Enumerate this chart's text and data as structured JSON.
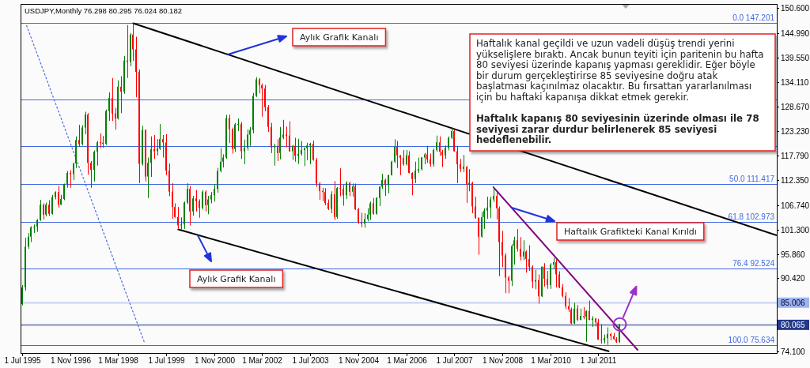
{
  "chart_data": {
    "type": "candlestick",
    "title": "USDJPY,Monthly 76.298 80.295 76.024 80.182",
    "x": [
      "1995-07",
      "1995-08",
      "1995-09",
      "1995-10",
      "1995-11",
      "1995-12",
      "1996-01",
      "1996-02",
      "1996-03",
      "1996-04",
      "1996-05",
      "1996-06",
      "1996-07",
      "1996-08",
      "1996-09",
      "1996-10",
      "1996-11",
      "1996-12",
      "1997-01",
      "1997-02",
      "1997-03",
      "1997-04",
      "1997-05",
      "1997-06",
      "1997-07",
      "1997-08",
      "1997-09",
      "1997-10",
      "1997-11",
      "1997-12",
      "1998-01",
      "1998-02",
      "1998-03",
      "1998-04",
      "1998-05",
      "1998-06",
      "1998-07",
      "1998-08",
      "1998-09",
      "1998-10",
      "1998-11",
      "1998-12",
      "1999-01",
      "1999-02",
      "1999-03",
      "1999-04",
      "1999-05",
      "1999-06",
      "1999-07",
      "1999-08",
      "1999-09",
      "1999-10",
      "1999-11",
      "1999-12",
      "2000-01",
      "2000-02",
      "2000-03",
      "2000-04",
      "2000-05",
      "2000-06",
      "2000-07",
      "2000-08",
      "2000-09",
      "2000-10",
      "2000-11",
      "2000-12",
      "2001-01",
      "2001-02",
      "2001-03",
      "2001-04",
      "2001-05",
      "2001-06",
      "2001-07",
      "2001-08",
      "2001-09",
      "2001-10",
      "2001-11",
      "2001-12",
      "2002-01",
      "2002-02",
      "2002-03",
      "2002-04",
      "2002-05",
      "2002-06",
      "2002-07",
      "2002-08",
      "2002-09",
      "2002-10",
      "2002-11",
      "2002-12",
      "2003-01",
      "2003-02",
      "2003-03",
      "2003-04",
      "2003-05",
      "2003-06",
      "2003-07",
      "2003-08",
      "2003-09",
      "2003-10",
      "2003-11",
      "2003-12",
      "2004-01",
      "2004-02",
      "2004-03",
      "2004-04",
      "2004-05",
      "2004-06",
      "2004-07",
      "2004-08",
      "2004-09",
      "2004-10",
      "2004-11",
      "2004-12",
      "2005-01",
      "2005-02",
      "2005-03",
      "2005-04",
      "2005-05",
      "2005-06",
      "2005-07",
      "2005-08",
      "2005-09",
      "2005-10",
      "2005-11",
      "2005-12",
      "2006-01",
      "2006-02",
      "2006-03",
      "2006-04",
      "2006-05",
      "2006-06",
      "2006-07",
      "2006-08",
      "2006-09",
      "2006-10",
      "2006-11",
      "2006-12",
      "2007-01",
      "2007-02",
      "2007-03",
      "2007-04",
      "2007-05",
      "2007-06",
      "2007-07",
      "2007-08",
      "2007-09",
      "2007-10",
      "2007-11",
      "2007-12",
      "2008-01",
      "2008-02",
      "2008-03",
      "2008-04",
      "2008-05",
      "2008-06",
      "2008-07",
      "2008-08",
      "2008-09",
      "2008-10",
      "2008-11",
      "2008-12",
      "2009-01",
      "2009-02",
      "2009-03",
      "2009-04",
      "2009-05",
      "2009-06",
      "2009-07",
      "2009-08",
      "2009-09",
      "2009-10",
      "2009-11",
      "2009-12",
      "2010-01",
      "2010-02",
      "2010-03",
      "2010-04",
      "2010-05",
      "2010-06",
      "2010-07",
      "2010-08",
      "2010-09",
      "2010-10",
      "2010-11",
      "2010-12",
      "2011-01",
      "2011-02",
      "2011-03",
      "2011-04",
      "2011-05",
      "2011-06",
      "2011-07",
      "2011-08",
      "2011-09",
      "2011-10",
      "2011-11",
      "2011-12",
      "2012-01",
      "2012-02"
    ],
    "ohlc": [
      [
        84.7,
        88.9,
        84.4,
        88.4
      ],
      [
        88.4,
        99.4,
        87.7,
        97.5
      ],
      [
        97.5,
        100.5,
        97.0,
        99.7
      ],
      [
        99.7,
        102.0,
        98.5,
        101.8
      ],
      [
        101.8,
        102.4,
        100.5,
        101.9
      ],
      [
        101.9,
        103.6,
        100.8,
        103.4
      ],
      [
        103.4,
        107.9,
        103.2,
        106.8
      ],
      [
        106.8,
        107.1,
        103.5,
        104.6
      ],
      [
        104.6,
        107.3,
        104.2,
        106.8
      ],
      [
        106.8,
        107.8,
        104.3,
        104.8
      ],
      [
        104.8,
        109.0,
        104.6,
        108.5
      ],
      [
        108.5,
        109.8,
        108.0,
        109.6
      ],
      [
        109.6,
        111.0,
        106.2,
        106.8
      ],
      [
        106.8,
        109.0,
        106.7,
        108.1
      ],
      [
        108.1,
        111.5,
        107.8,
        111.4
      ],
      [
        111.4,
        114.3,
        110.6,
        113.9
      ],
      [
        113.9,
        114.5,
        110.6,
        113.6
      ],
      [
        113.6,
        116.2,
        112.3,
        116.0
      ],
      [
        116.0,
        122.0,
        115.0,
        121.2
      ],
      [
        121.2,
        124.6,
        119.8,
        120.3
      ],
      [
        120.3,
        124.5,
        120.0,
        124.0
      ],
      [
        124.0,
        127.5,
        122.5,
        126.9
      ],
      [
        126.9,
        127.2,
        113.5,
        116.1
      ],
      [
        116.1,
        116.5,
        110.6,
        114.6
      ],
      [
        114.6,
        118.9,
        112.0,
        118.6
      ],
      [
        118.6,
        121.0,
        115.5,
        120.7
      ],
      [
        120.7,
        122.7,
        119.4,
        120.6
      ],
      [
        120.6,
        122.1,
        119.5,
        120.4
      ],
      [
        120.4,
        128.0,
        120.1,
        127.7
      ],
      [
        127.7,
        131.8,
        125.5,
        130.6
      ],
      [
        130.6,
        135.0,
        125.5,
        127.1
      ],
      [
        127.1,
        128.4,
        123.5,
        126.0
      ],
      [
        126.0,
        134.5,
        125.8,
        133.1
      ],
      [
        133.1,
        135.4,
        127.2,
        132.0
      ],
      [
        132.0,
        139.9,
        131.5,
        138.9
      ],
      [
        138.9,
        146.8,
        135.0,
        138.6
      ],
      [
        138.6,
        145.0,
        137.6,
        144.7
      ],
      [
        144.7,
        147.2,
        138.8,
        141.4
      ],
      [
        141.4,
        144.2,
        130.7,
        136.4
      ],
      [
        136.4,
        136.9,
        111.6,
        115.9
      ],
      [
        115.9,
        124.4,
        115.5,
        123.4
      ],
      [
        123.4,
        123.6,
        112.0,
        113.1
      ],
      [
        113.1,
        117.3,
        108.3,
        116.1
      ],
      [
        116.1,
        122.0,
        113.0,
        119.2
      ],
      [
        119.2,
        122.3,
        117.0,
        118.7
      ],
      [
        118.7,
        121.4,
        117.8,
        119.3
      ],
      [
        119.3,
        124.8,
        119.0,
        121.4
      ],
      [
        121.4,
        122.3,
        117.3,
        120.7
      ],
      [
        120.7,
        122.5,
        113.4,
        114.4
      ],
      [
        114.4,
        116.0,
        108.7,
        109.7
      ],
      [
        109.7,
        111.6,
        103.7,
        106.3
      ],
      [
        106.3,
        107.1,
        103.9,
        104.1
      ],
      [
        104.1,
        106.3,
        101.5,
        102.2
      ],
      [
        102.2,
        104.0,
        101.3,
        102.4
      ],
      [
        102.4,
        107.5,
        101.4,
        107.3
      ],
      [
        107.3,
        111.6,
        107.0,
        110.3
      ],
      [
        110.3,
        111.0,
        102.2,
        105.3
      ],
      [
        105.3,
        108.8,
        104.4,
        108.2
      ],
      [
        108.2,
        110.1,
        105.3,
        107.6
      ],
      [
        107.6,
        108.0,
        103.9,
        106.1
      ],
      [
        106.1,
        110.0,
        105.7,
        109.7
      ],
      [
        109.7,
        110.0,
        105.3,
        106.7
      ],
      [
        106.7,
        108.8,
        104.7,
        108.0
      ],
      [
        108.0,
        109.6,
        107.1,
        108.9
      ],
      [
        108.9,
        111.4,
        107.5,
        110.3
      ],
      [
        110.3,
        115.0,
        109.5,
        114.3
      ],
      [
        114.3,
        119.4,
        114.0,
        116.4
      ],
      [
        116.4,
        118.0,
        115.1,
        117.3
      ],
      [
        117.3,
        126.8,
        117.0,
        126.1
      ],
      [
        126.1,
        126.9,
        120.5,
        123.6
      ],
      [
        123.6,
        124.0,
        118.2,
        119.2
      ],
      [
        119.2,
        125.0,
        118.6,
        124.7
      ],
      [
        124.7,
        126.0,
        123.2,
        124.8
      ],
      [
        124.8,
        125.2,
        117.0,
        118.7
      ],
      [
        118.7,
        121.3,
        115.8,
        119.5
      ],
      [
        119.5,
        123.6,
        118.9,
        122.4
      ],
      [
        122.4,
        124.1,
        119.9,
        123.4
      ],
      [
        123.4,
        131.7,
        122.7,
        131.0
      ],
      [
        131.0,
        135.2,
        130.8,
        134.7
      ],
      [
        134.7,
        135.0,
        131.6,
        133.4
      ],
      [
        133.4,
        133.8,
        126.4,
        132.7
      ],
      [
        132.7,
        133.5,
        127.6,
        128.5
      ],
      [
        128.5,
        129.0,
        123.0,
        124.1
      ],
      [
        124.1,
        125.0,
        118.3,
        119.6
      ],
      [
        119.6,
        120.4,
        115.5,
        119.9
      ],
      [
        119.9,
        121.4,
        116.5,
        118.3
      ],
      [
        118.3,
        124.1,
        116.9,
        121.8
      ],
      [
        121.8,
        125.7,
        121.4,
        122.4
      ],
      [
        122.4,
        124.2,
        119.6,
        122.2
      ],
      [
        122.2,
        125.4,
        118.6,
        118.7
      ],
      [
        118.7,
        120.1,
        116.8,
        119.9
      ],
      [
        119.9,
        121.7,
        116.4,
        117.7
      ],
      [
        117.7,
        121.5,
        115.9,
        118.1
      ],
      [
        118.1,
        121.0,
        117.8,
        119.0
      ],
      [
        119.0,
        119.6,
        115.4,
        119.4
      ],
      [
        119.4,
        120.6,
        116.7,
        120.0
      ],
      [
        120.0,
        120.6,
        115.8,
        120.4
      ],
      [
        120.4,
        121.1,
        116.6,
        116.8
      ],
      [
        116.8,
        117.2,
        110.8,
        111.5
      ],
      [
        111.5,
        111.8,
        107.9,
        109.9
      ],
      [
        109.9,
        110.6,
        107.6,
        109.6
      ],
      [
        109.6,
        110.5,
        106.7,
        107.2
      ],
      [
        107.2,
        108.0,
        105.6,
        105.9
      ],
      [
        105.9,
        109.8,
        104.9,
        109.1
      ],
      [
        109.1,
        112.1,
        103.4,
        104.1
      ],
      [
        104.1,
        110.7,
        103.7,
        110.5
      ],
      [
        110.5,
        114.9,
        108.7,
        110.3
      ],
      [
        110.3,
        111.2,
        106.6,
        108.9
      ],
      [
        108.9,
        112.1,
        108.1,
        111.7
      ],
      [
        111.7,
        111.9,
        108.7,
        109.7
      ],
      [
        109.7,
        111.5,
        108.6,
        110.9
      ],
      [
        110.9,
        111.5,
        105.6,
        105.8
      ],
      [
        105.8,
        106.1,
        102.5,
        103.0
      ],
      [
        103.0,
        105.0,
        101.8,
        102.6
      ],
      [
        102.6,
        104.9,
        101.7,
        103.6
      ],
      [
        103.6,
        106.0,
        103.1,
        104.6
      ],
      [
        104.6,
        107.5,
        103.4,
        107.1
      ],
      [
        107.1,
        108.3,
        104.6,
        104.8
      ],
      [
        104.8,
        108.5,
        104.6,
        108.3
      ],
      [
        108.3,
        111.0,
        106.5,
        110.8
      ],
      [
        110.8,
        113.7,
        110.3,
        112.3
      ],
      [
        112.3,
        112.6,
        108.8,
        111.2
      ],
      [
        111.2,
        113.5,
        109.3,
        113.4
      ],
      [
        113.4,
        116.6,
        113.3,
        116.4
      ],
      [
        116.4,
        121.4,
        116.1,
        119.7
      ],
      [
        119.7,
        121.0,
        115.0,
        117.8
      ],
      [
        117.8,
        117.9,
        113.4,
        117.2
      ],
      [
        117.2,
        119.0,
        115.5,
        115.8
      ],
      [
        115.8,
        119.0,
        115.5,
        117.8
      ],
      [
        117.8,
        118.7,
        113.8,
        113.9
      ],
      [
        113.9,
        114.0,
        108.9,
        112.5
      ],
      [
        112.5,
        116.4,
        111.6,
        114.4
      ],
      [
        114.4,
        117.3,
        113.9,
        114.7
      ],
      [
        114.7,
        117.4,
        114.4,
        117.3
      ],
      [
        117.3,
        118.3,
        115.8,
        118.0
      ],
      [
        118.0,
        119.9,
        116.1,
        116.9
      ],
      [
        116.9,
        118.2,
        115.3,
        115.8
      ],
      [
        115.8,
        119.3,
        115.3,
        119.0
      ],
      [
        119.0,
        122.2,
        118.6,
        120.7
      ],
      [
        120.7,
        122.0,
        117.7,
        118.6
      ],
      [
        118.6,
        119.0,
        115.2,
        117.8
      ],
      [
        117.8,
        120.0,
        117.0,
        119.5
      ],
      [
        119.5,
        122.0,
        118.9,
        121.7
      ],
      [
        121.7,
        124.1,
        121.4,
        123.2
      ],
      [
        123.2,
        123.5,
        118.6,
        118.7
      ],
      [
        118.7,
        119.9,
        111.6,
        115.8
      ],
      [
        115.8,
        117.0,
        114.1,
        114.8
      ],
      [
        114.8,
        117.9,
        114.1,
        115.3
      ],
      [
        115.3,
        115.4,
        107.2,
        111.3
      ],
      [
        111.3,
        114.7,
        109.8,
        111.7
      ],
      [
        111.7,
        111.9,
        104.9,
        106.4
      ],
      [
        106.4,
        108.6,
        103.7,
        103.9
      ],
      [
        103.9,
        104.0,
        95.7,
        99.7
      ],
      [
        99.7,
        105.2,
        99.5,
        104.0
      ],
      [
        104.0,
        106.0,
        101.4,
        105.5
      ],
      [
        105.5,
        108.6,
        103.7,
        106.2
      ],
      [
        106.2,
        108.6,
        103.8,
        108.0
      ],
      [
        108.0,
        110.7,
        107.4,
        108.8
      ],
      [
        108.8,
        109.6,
        103.5,
        106.0
      ],
      [
        106.0,
        106.4,
        90.9,
        98.5
      ],
      [
        98.5,
        101.0,
        92.9,
        95.5
      ],
      [
        95.5,
        96.0,
        87.1,
        90.6
      ],
      [
        90.6,
        91.0,
        87.1,
        89.9
      ],
      [
        89.9,
        98.0,
        88.7,
        97.6
      ],
      [
        97.6,
        99.7,
        93.5,
        98.9
      ],
      [
        98.9,
        101.4,
        96.4,
        97.0
      ],
      [
        97.0,
        99.6,
        94.4,
        95.3
      ],
      [
        95.3,
        98.9,
        94.5,
        96.4
      ],
      [
        96.4,
        96.6,
        91.7,
        94.7
      ],
      [
        94.7,
        97.8,
        92.1,
        93.0
      ],
      [
        93.0,
        93.3,
        88.2,
        89.7
      ],
      [
        89.7,
        92.3,
        88.0,
        90.0
      ],
      [
        90.0,
        91.3,
        84.8,
        86.4
      ],
      [
        86.4,
        93.1,
        86.3,
        93.0
      ],
      [
        93.0,
        93.8,
        88.6,
        90.3
      ],
      [
        90.3,
        92.1,
        88.1,
        88.9
      ],
      [
        88.9,
        93.8,
        88.1,
        93.5
      ],
      [
        93.5,
        95.0,
        92.5,
        94.0
      ],
      [
        94.0,
        94.7,
        88.4,
        91.3
      ],
      [
        91.3,
        92.0,
        88.2,
        88.4
      ],
      [
        88.4,
        89.2,
        86.2,
        86.5
      ],
      [
        86.5,
        87.3,
        83.6,
        84.2
      ],
      [
        84.2,
        86.0,
        82.9,
        83.5
      ],
      [
        83.5,
        83.9,
        80.2,
        80.4
      ],
      [
        80.4,
        85.0,
        80.2,
        83.7
      ],
      [
        83.7,
        84.5,
        80.9,
        81.2
      ],
      [
        81.2,
        83.7,
        81.1,
        82.0
      ],
      [
        82.0,
        84.0,
        81.3,
        81.8
      ],
      [
        81.8,
        83.3,
        76.3,
        83.1
      ],
      [
        83.1,
        85.5,
        81.1,
        81.2
      ],
      [
        81.2,
        82.0,
        79.6,
        81.5
      ],
      [
        81.5,
        81.6,
        79.7,
        80.6
      ],
      [
        80.6,
        81.4,
        76.7,
        76.8
      ],
      [
        76.8,
        80.2,
        75.9,
        76.6
      ],
      [
        76.6,
        77.9,
        75.9,
        77.1
      ],
      [
        77.1,
        79.5,
        75.6,
        78.0
      ],
      [
        78.0,
        78.3,
        76.6,
        77.6
      ],
      [
        77.6,
        78.3,
        76.7,
        76.9
      ],
      [
        76.9,
        77.3,
        76.1,
        76.3
      ],
      [
        76.298,
        80.295,
        76.024,
        80.182
      ]
    ],
    "colors": [
      "#008000",
      "#008000",
      "#008000",
      "#008000",
      "#008000",
      "#008000",
      "#008000",
      "#ff0000",
      "#008000",
      "#ff0000",
      "#008000",
      "#008000",
      "#ff0000",
      "#008000",
      "#008000",
      "#008000",
      "#ff0000",
      "#008000",
      "#008000",
      "#ff0000",
      "#008000",
      "#008000",
      "#ff0000",
      "#ff0000",
      "#008000",
      "#008000",
      "#ff0000",
      "#ff0000",
      "#008000",
      "#008000",
      "#ff0000",
      "#ff0000",
      "#008000",
      "#ff0000",
      "#008000",
      "#ff0000",
      "#008000",
      "#ff0000",
      "#ff0000",
      "#ff0000",
      "#008000",
      "#ff0000",
      "#008000",
      "#008000",
      "#ff0000",
      "#008000",
      "#008000",
      "#ff0000",
      "#ff0000",
      "#ff0000",
      "#ff0000",
      "#ff0000",
      "#ff0000",
      "#008000",
      "#008000",
      "#008000",
      "#ff0000",
      "#008000",
      "#ff0000",
      "#ff0000",
      "#008000",
      "#ff0000",
      "#008000",
      "#008000",
      "#008000",
      "#008000",
      "#008000",
      "#008000",
      "#008000",
      "#ff0000",
      "#ff0000",
      "#008000",
      "#008000",
      "#ff0000",
      "#008000",
      "#008000",
      "#008000",
      "#008000",
      "#008000",
      "#ff0000",
      "#ff0000",
      "#ff0000",
      "#ff0000",
      "#ff0000",
      "#008000",
      "#ff0000",
      "#008000",
      "#008000",
      "#ff0000",
      "#ff0000",
      "#008000",
      "#ff0000",
      "#008000",
      "#008000",
      "#008000",
      "#008000",
      "#008000",
      "#ff0000",
      "#ff0000",
      "#ff0000",
      "#ff0000",
      "#ff0000",
      "#ff0000",
      "#008000",
      "#ff0000",
      "#008000",
      "#ff0000",
      "#ff0000",
      "#008000",
      "#ff0000",
      "#008000",
      "#ff0000",
      "#ff0000",
      "#ff0000",
      "#008000",
      "#008000",
      "#008000",
      "#ff0000",
      "#008000",
      "#008000",
      "#008000",
      "#ff0000",
      "#008000",
      "#008000",
      "#008000",
      "#ff0000",
      "#ff0000",
      "#ff0000",
      "#008000",
      "#ff0000",
      "#ff0000",
      "#008000",
      "#008000",
      "#008000",
      "#008000",
      "#ff0000",
      "#ff0000",
      "#008000",
      "#008000",
      "#ff0000",
      "#ff0000",
      "#008000",
      "#008000",
      "#008000",
      "#ff0000",
      "#ff0000",
      "#ff0000",
      "#008000",
      "#ff0000",
      "#008000",
      "#ff0000",
      "#ff0000",
      "#ff0000",
      "#008000",
      "#008000",
      "#008000",
      "#008000",
      "#008000",
      "#ff0000",
      "#ff0000",
      "#ff0000",
      "#ff0000",
      "#ff0000",
      "#008000",
      "#008000",
      "#ff0000",
      "#ff0000",
      "#008000",
      "#ff0000",
      "#ff0000",
      "#ff0000",
      "#008000",
      "#ff0000",
      "#008000",
      "#ff0000",
      "#ff0000",
      "#008000",
      "#008000",
      "#ff0000",
      "#ff0000",
      "#ff0000",
      "#ff0000",
      "#ff0000",
      "#ff0000",
      "#008000",
      "#ff0000",
      "#008000",
      "#ff0000",
      "#008000",
      "#ff0000",
      "#008000",
      "#ff0000",
      "#ff0000",
      "#ff0000",
      "#008000",
      "#008000",
      "#ff0000",
      "#ff0000",
      "#ff0000",
      "#008000"
    ],
    "series": [
      {
        "type": "line",
        "x": [
          "1998-08",
          "2016-06-13"
        ],
        "values": [
          147.2,
          100.0
        ],
        "color": "#000000"
      },
      {
        "type": "line",
        "x": [
          "1999-11",
          "2011-10-13"
        ],
        "values": [
          101.3,
          74.2
        ],
        "color": "#000000"
      },
      {
        "type": "line",
        "x": [
          "2008-08",
          "2012-08"
        ],
        "values": [
          110.7,
          74.5
        ],
        "color": "#800080"
      },
      {
        "type": "line",
        "x": [
          "1995-08-16",
          "1998-11-27"
        ],
        "values": [
          146.7,
          75.9
        ],
        "color": "#4f6fe0",
        "line_style": "dotted"
      }
    ],
    "xlim": [
      "1995-06-16",
      "2016-06-13"
    ],
    "xticks": [
      {
        "value": "1995-07",
        "label": "1 Jul 1995"
      },
      {
        "value": "1996-11",
        "label": "1 Nov 1996"
      },
      {
        "value": "1998-03",
        "label": "1 Mar 1998"
      },
      {
        "value": "1999-07",
        "label": "1 Jul 1999"
      },
      {
        "value": "2000-11",
        "label": "1 Nov 2000"
      },
      {
        "value": "2002-03",
        "label": "1 Mar 2002"
      },
      {
        "value": "2003-07",
        "label": "1 Jul 2003"
      },
      {
        "value": "2004-11",
        "label": "1 Nov 2004"
      },
      {
        "value": "2006-03",
        "label": "1 Mar 2006"
      },
      {
        "value": "2007-07",
        "label": "1 Jul 2007"
      },
      {
        "value": "2008-11",
        "label": "1 Nov 2008"
      },
      {
        "value": "2010-03",
        "label": "1 Mar 2010"
      },
      {
        "value": "2011-07",
        "label": "1 Jul 2011"
      }
    ],
    "ylim": [
      73.8,
      151.5
    ],
    "yticks": [
      {
        "value": 150.6,
        "label": "150.600"
      },
      {
        "value": 144.99,
        "label": "144.990"
      },
      {
        "value": 139.55,
        "label": "139.550"
      },
      {
        "value": 134.11,
        "label": "134.110"
      },
      {
        "value": 128.67,
        "label": "128.670"
      },
      {
        "value": 123.23,
        "label": "123.230"
      },
      {
        "value": 117.79,
        "label": "117.790"
      },
      {
        "value": 112.35,
        "label": "112.350"
      },
      {
        "value": 106.74,
        "label": "106.740"
      },
      {
        "value": 101.3,
        "label": "101.300"
      },
      {
        "value": 95.86,
        "label": "95.860"
      },
      {
        "value": 90.42,
        "label": "90.420"
      },
      {
        "value": 85.006,
        "label": "85.006"
      },
      {
        "value": 80.065,
        "label": "80.065"
      },
      {
        "value": 74.1,
        "label": "74.100"
      }
    ],
    "ref_lines": [
      {
        "axis": "y",
        "value": 147.201,
        "label": "0.0 147.201",
        "color": "#4169e1"
      },
      {
        "axis": "y",
        "value": 130.3,
        "color": "#4169e1"
      },
      {
        "axis": "y",
        "value": 119.9,
        "color": "#4169e1"
      },
      {
        "axis": "y",
        "value": 111.417,
        "label": "50.0 111.417",
        "color": "#4169e1"
      },
      {
        "axis": "y",
        "value": 102.973,
        "label": "61.8 102.973",
        "color": "#4169e1"
      },
      {
        "axis": "y",
        "value": 92.524,
        "label": "76.4 92.524",
        "color": "#4169e1"
      },
      {
        "axis": "y",
        "value": 85.006,
        "color": "#9db3f0"
      },
      {
        "axis": "y",
        "value": 80.065,
        "color": "#24398a"
      },
      {
        "axis": "y",
        "value": 75.634,
        "label": "100.0 75.634",
        "color": "#4169e1"
      }
    ],
    "annotations": [
      "Aylık Grafik Kanalı",
      "Aylık Grafik Kanalı",
      "Haftalık Grafikteki Kanal Kırıldı",
      "Haftalık kanal geçildi ve uzun vadeli düşüş trendi yerini yükselişlere bıraktı. Ancak bunun teyiti için paritenin bu hafta 80 seviyesi üzerinde kapanış yapması gereklidir. Eğer böyle bir durum gerçekleştirirse 85 seviyesine doğru atak başlatması kaçınılmaz olacaktır. Bu fırsattan yararlanılması için bu haftaki kapanışa dikkat etmek gerekir.",
      "Haftalık kapanış 80 seviyesinin üzerinde olması ile 78 seviyesi zarar durdur belirlenerek 85 seviyesi hedeflenebilir."
    ]
  }
}
